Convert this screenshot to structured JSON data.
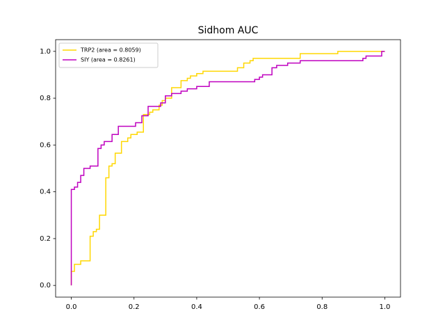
{
  "chart_data": {
    "type": "line",
    "title": "Sidhom AUC",
    "xlim": [
      -0.05,
      1.05
    ],
    "ylim": [
      -0.05,
      1.05
    ],
    "xticks": [
      {
        "value": 0,
        "label": "0.0"
      },
      0.2,
      0.4,
      0.6,
      0.8,
      {
        "value": 1,
        "label": "1.0"
      }
    ],
    "yticks": [
      {
        "value": 0,
        "label": "0.0"
      },
      0.2,
      0.4,
      0.6,
      0.8,
      {
        "value": 1,
        "label": "1.0"
      }
    ],
    "legend": "upper left",
    "series": [
      {
        "name": "TRP2 (area = 0.8059)",
        "color": "#ffd700",
        "x": [
          0,
          0,
          0.01,
          0.01,
          0.03,
          0.03,
          0.06,
          0.06,
          0.07,
          0.07,
          0.08,
          0.08,
          0.09,
          0.09,
          0.11,
          0.11,
          0.12,
          0.12,
          0.13,
          0.13,
          0.14,
          0.14,
          0.16,
          0.16,
          0.18,
          0.18,
          0.19,
          0.19,
          0.21,
          0.21,
          0.23,
          0.23,
          0.25,
          0.25,
          0.26,
          0.26,
          0.28,
          0.28,
          0.29,
          0.29,
          0.3,
          0.3,
          0.32,
          0.32,
          0.35,
          0.35,
          0.37,
          0.37,
          0.38,
          0.38,
          0.4,
          0.4,
          0.42,
          0.42,
          0.53,
          0.53,
          0.55,
          0.55,
          0.57,
          0.57,
          0.58,
          0.58,
          0.73,
          0.73,
          0.85,
          0.85,
          1.0
        ],
        "values": [
          0,
          0.06,
          0.06,
          0.09,
          0.09,
          0.105,
          0.105,
          0.21,
          0.21,
          0.23,
          0.23,
          0.24,
          0.24,
          0.3,
          0.3,
          0.46,
          0.46,
          0.51,
          0.51,
          0.52,
          0.52,
          0.565,
          0.565,
          0.615,
          0.615,
          0.63,
          0.63,
          0.645,
          0.645,
          0.655,
          0.655,
          0.73,
          0.73,
          0.74,
          0.74,
          0.75,
          0.75,
          0.77,
          0.77,
          0.79,
          0.79,
          0.8,
          0.8,
          0.845,
          0.845,
          0.875,
          0.875,
          0.885,
          0.885,
          0.895,
          0.895,
          0.905,
          0.905,
          0.915,
          0.915,
          0.93,
          0.93,
          0.95,
          0.95,
          0.96,
          0.96,
          0.97,
          0.97,
          0.99,
          0.99,
          1.0,
          1.0
        ]
      },
      {
        "name": "SIY (area = 0.8261)",
        "color": "#bf00bf",
        "x": [
          0,
          0,
          0.01,
          0.01,
          0.02,
          0.02,
          0.03,
          0.03,
          0.04,
          0.04,
          0.06,
          0.06,
          0.085,
          0.085,
          0.095,
          0.095,
          0.105,
          0.105,
          0.13,
          0.13,
          0.15,
          0.15,
          0.205,
          0.205,
          0.225,
          0.225,
          0.245,
          0.245,
          0.285,
          0.285,
          0.3,
          0.3,
          0.32,
          0.32,
          0.35,
          0.35,
          0.37,
          0.37,
          0.4,
          0.4,
          0.44,
          0.44,
          0.585,
          0.585,
          0.6,
          0.6,
          0.61,
          0.61,
          0.64,
          0.64,
          0.655,
          0.655,
          0.69,
          0.69,
          0.73,
          0.73,
          0.93,
          0.93,
          0.94,
          0.94,
          0.99,
          0.99,
          1.0
        ],
        "values": [
          0,
          0.41,
          0.41,
          0.42,
          0.42,
          0.44,
          0.44,
          0.47,
          0.47,
          0.5,
          0.5,
          0.51,
          0.51,
          0.585,
          0.585,
          0.6,
          0.6,
          0.615,
          0.615,
          0.645,
          0.645,
          0.68,
          0.68,
          0.695,
          0.695,
          0.725,
          0.725,
          0.765,
          0.765,
          0.78,
          0.78,
          0.81,
          0.81,
          0.82,
          0.82,
          0.83,
          0.83,
          0.84,
          0.84,
          0.85,
          0.85,
          0.87,
          0.87,
          0.88,
          0.88,
          0.89,
          0.89,
          0.9,
          0.9,
          0.93,
          0.93,
          0.94,
          0.94,
          0.95,
          0.95,
          0.96,
          0.96,
          0.97,
          0.97,
          0.98,
          0.98,
          1.0,
          1.0
        ]
      }
    ]
  }
}
